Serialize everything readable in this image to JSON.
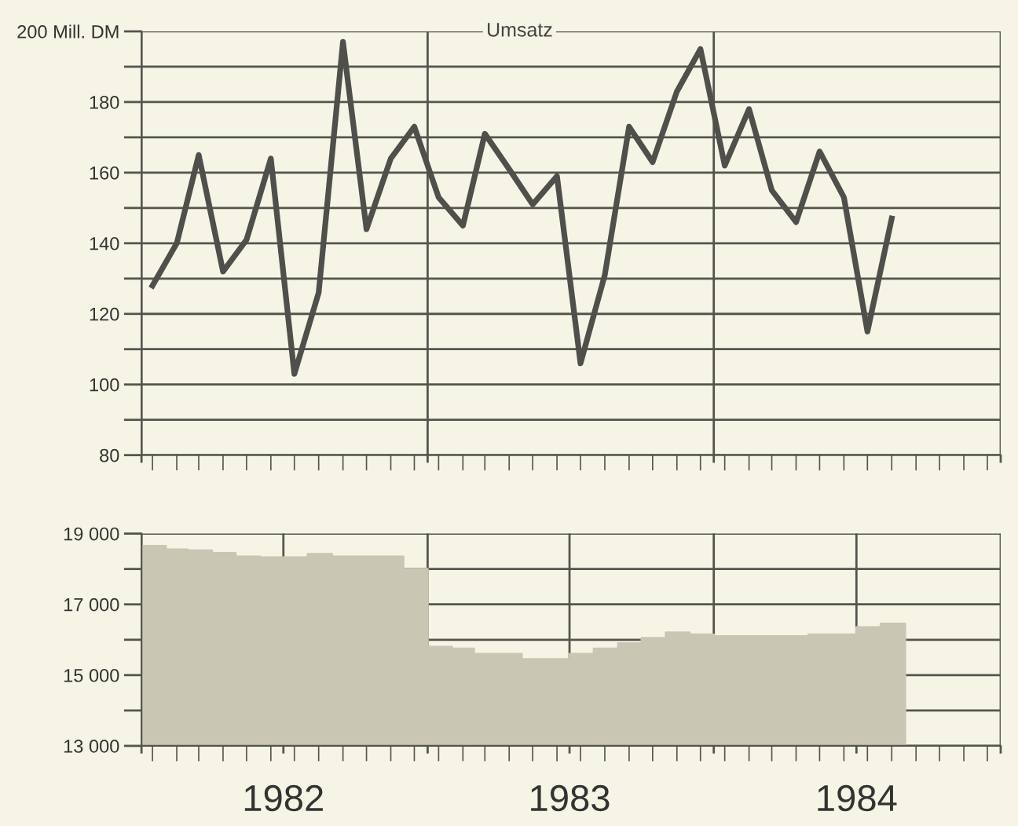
{
  "chart_data": [
    {
      "type": "line",
      "title": "Umsatz",
      "x": [
        "1982-01-15",
        "1982-02-15",
        "1982-03-15",
        "1982-04-15",
        "1982-05-15",
        "1982-06-15",
        "1982-07-15",
        "1982-08-15",
        "1982-09-15",
        "1982-10-15",
        "1982-11-15",
        "1982-12-15",
        "1983-01-15",
        "1983-02-15",
        "1983-03-15",
        "1983-04-15",
        "1983-05-15",
        "1983-06-15",
        "1983-07-15",
        "1983-08-15",
        "1983-09-15",
        "1983-10-15",
        "1983-11-15",
        "1983-12-15",
        "1984-01-15",
        "1984-02-15",
        "1984-03-15",
        "1984-04-15",
        "1984-05-15",
        "1984-06-15",
        "1984-07-15",
        "1984-08-15"
      ],
      "series": [
        {
          "color": "#4f4f4b",
          "values": [
            128,
            140,
            165,
            132,
            141,
            164,
            103,
            126,
            197,
            144,
            164,
            173,
            153,
            145,
            171,
            161,
            151,
            159,
            106,
            131,
            173,
            163,
            183,
            195,
            162,
            178,
            155,
            146,
            166,
            153,
            115,
            147
          ]
        }
      ],
      "xlim": [
        "1982-01-01",
        "1985-01-01"
      ],
      "xticks": [
        {
          "value": "1982-01-01",
          "label": null
        },
        {
          "value": "1983-01-01",
          "label": null
        },
        {
          "value": "1984-01-01",
          "label": null
        },
        {
          "value": "1985-01-01",
          "label": null
        }
      ],
      "ylim": [
        80,
        200
      ],
      "yticks": [
        80,
        {
          "value": 90,
          "label": null
        },
        100,
        {
          "value": 110,
          "label": null
        },
        120,
        {
          "value": 130,
          "label": null
        },
        140,
        {
          "value": 150,
          "label": null
        },
        160,
        {
          "value": 170,
          "label": null
        },
        180,
        {
          "value": 190,
          "label": null
        },
        {
          "value": 200,
          "label": "200 Mill. DM"
        }
      ],
      "tick_labels": "y",
      "grid": true,
      "line_style": "solid",
      "marker": "none"
    },
    {
      "type": "area",
      "x": [
        "1982-01",
        "1982-02",
        "1982-03",
        "1982-04",
        "1982-05",
        "1982-06",
        "1982-07",
        "1982-08",
        "1982-09",
        "1982-10",
        "1982-11",
        "1982-12",
        "1983-01",
        "1983-02",
        "1983-03",
        "1983-04",
        "1983-05",
        "1983-06",
        "1983-07",
        "1983-08",
        "1983-09",
        "1983-10",
        "1983-11",
        "1983-12",
        "1984-01",
        "1984-02",
        "1984-03",
        "1984-04",
        "1984-05",
        "1984-06",
        "1984-07",
        "1984-08",
        "1984-09"
      ],
      "series": [
        {
          "color": "#c9c6b4",
          "values": [
            18650,
            18550,
            18520,
            18450,
            18350,
            18330,
            18330,
            18420,
            18350,
            18350,
            18350,
            18000,
            15800,
            15750,
            15600,
            15600,
            15450,
            15450,
            15600,
            15750,
            15900,
            16050,
            16200,
            16150,
            16100,
            16100,
            16100,
            16100,
            16150,
            16150,
            16350,
            16450,
            16450
          ]
        }
      ],
      "xlim": [
        "1982-01-01",
        "1985-01-01"
      ],
      "xticks": [
        {
          "value": "1982-01-01",
          "label": null
        },
        {
          "value": "1982-07-01",
          "label": "1982"
        },
        {
          "value": "1983-01-01",
          "label": null
        },
        {
          "value": "1983-07-01",
          "label": "1983"
        },
        {
          "value": "1984-01-01",
          "label": null
        },
        {
          "value": "1984-07-01",
          "label": "1984"
        },
        {
          "value": "1985-01-01",
          "label": null
        }
      ],
      "ylim": [
        13000,
        19000
      ],
      "yticks": [
        {
          "value": 13000,
          "label": "13 000"
        },
        {
          "value": 14000,
          "label": null
        },
        {
          "value": 15000,
          "label": "15 000"
        },
        {
          "value": 16000,
          "label": null
        },
        {
          "value": 17000,
          "label": "17 000"
        },
        {
          "value": 18000,
          "label": null
        },
        {
          "value": 19000,
          "label": "19 000"
        }
      ],
      "grid": true
    }
  ]
}
